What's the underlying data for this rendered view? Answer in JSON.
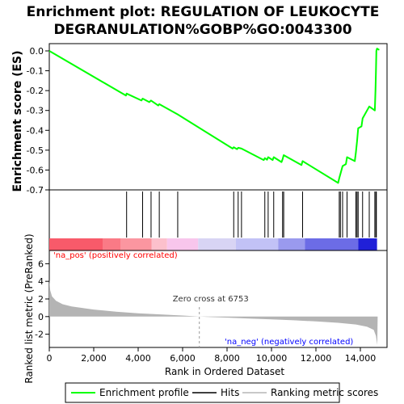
{
  "chart_data": {
    "type": "line",
    "title_line1": "Enrichment plot: REGULATION OF LEUKOCYTE",
    "title_line2": "DEGRANULATION%GOBP%GO:0043300",
    "es_panel": {
      "ylabel": "Enrichment score (ES)",
      "ylim": [
        -0.7,
        0.02
      ],
      "yticks": [
        0.0,
        -0.1,
        -0.2,
        -0.3,
        -0.4,
        -0.5,
        -0.6,
        -0.7
      ],
      "ytick_labels": [
        "0.0",
        "-0.1",
        "-0.2",
        "-0.3",
        "-0.4",
        "-0.5",
        "-0.6",
        "-0.7"
      ],
      "line_color": "#00ff00",
      "series_name": "Enrichment profile",
      "points": [
        [
          0,
          0.0
        ],
        [
          3450,
          -0.225
        ],
        [
          3480,
          -0.215
        ],
        [
          4150,
          -0.25
        ],
        [
          4200,
          -0.24
        ],
        [
          4500,
          -0.258
        ],
        [
          4580,
          -0.25
        ],
        [
          4900,
          -0.275
        ],
        [
          4950,
          -0.268
        ],
        [
          5750,
          -0.318
        ],
        [
          5780,
          -0.32
        ],
        [
          8250,
          -0.492
        ],
        [
          8300,
          -0.485
        ],
        [
          8450,
          -0.495
        ],
        [
          8500,
          -0.488
        ],
        [
          8650,
          -0.492
        ],
        [
          9650,
          -0.55
        ],
        [
          9700,
          -0.54
        ],
        [
          9800,
          -0.548
        ],
        [
          9850,
          -0.535
        ],
        [
          10050,
          -0.55
        ],
        [
          10100,
          -0.535
        ],
        [
          10450,
          -0.56
        ],
        [
          10500,
          -0.545
        ],
        [
          10550,
          -0.525
        ],
        [
          11350,
          -0.575
        ],
        [
          11400,
          -0.555
        ],
        [
          13000,
          -0.665
        ],
        [
          13050,
          -0.64
        ],
        [
          13100,
          -0.62
        ],
        [
          13200,
          -0.58
        ],
        [
          13350,
          -0.57
        ],
        [
          13400,
          -0.535
        ],
        [
          13750,
          -0.555
        ],
        [
          13800,
          -0.51
        ],
        [
          13850,
          -0.455
        ],
        [
          13900,
          -0.39
        ],
        [
          14050,
          -0.38
        ],
        [
          14100,
          -0.34
        ],
        [
          14400,
          -0.28
        ],
        [
          14650,
          -0.3
        ],
        [
          14680,
          -0.2
        ],
        [
          14700,
          -0.1
        ],
        [
          14720,
          0.0
        ],
        [
          14750,
          0.012
        ],
        [
          14850,
          0.005
        ]
      ]
    },
    "hits": {
      "legend_label": "Hits",
      "color": "#000000",
      "positions": [
        3480,
        4200,
        4580,
        4950,
        5780,
        8300,
        8500,
        8650,
        9700,
        9850,
        10100,
        10500,
        10550,
        11400,
        13050,
        13100,
        13200,
        13400,
        13800,
        13850,
        13900,
        14100,
        14400,
        14650,
        14700,
        14720
      ]
    },
    "heatmap_bar": {
      "segments": [
        {
          "from": 0,
          "to": 2400,
          "color": "#f85a6a"
        },
        {
          "from": 2400,
          "to": 3200,
          "color": "#fa7a86"
        },
        {
          "from": 3200,
          "to": 4600,
          "color": "#fb96a0"
        },
        {
          "from": 4600,
          "to": 5300,
          "color": "#fcc0cc"
        },
        {
          "from": 5300,
          "to": 6700,
          "color": "#f8c6ec"
        },
        {
          "from": 6700,
          "to": 8400,
          "color": "#d8d4f4"
        },
        {
          "from": 8400,
          "to": 10300,
          "color": "#c2c2f6"
        },
        {
          "from": 10300,
          "to": 11500,
          "color": "#9a9aee"
        },
        {
          "from": 11500,
          "to": 13900,
          "color": "#6c6ce6"
        },
        {
          "from": 13900,
          "to": 14750,
          "color": "#2020d8"
        }
      ]
    },
    "rank_panel": {
      "ylabel": "Ranked list metric (PreRanked)",
      "xlabel": "Rank in Ordered Dataset",
      "ylim": [
        -3.5,
        7.5
      ],
      "yticks": [
        6,
        4,
        2,
        0,
        -2
      ],
      "ytick_labels": [
        "6",
        "4",
        "2",
        "0",
        "-2"
      ],
      "legend_label": "Ranking metric scores",
      "fill_color": "#b4b4b4",
      "metric_points": [
        [
          0,
          4.2
        ],
        [
          40,
          3.0
        ],
        [
          120,
          2.3
        ],
        [
          300,
          1.8
        ],
        [
          600,
          1.4
        ],
        [
          1000,
          1.15
        ],
        [
          2000,
          0.8
        ],
        [
          3000,
          0.55
        ],
        [
          4000,
          0.38
        ],
        [
          5000,
          0.25
        ],
        [
          6000,
          0.12
        ],
        [
          6753,
          0.0
        ],
        [
          8000,
          -0.12
        ],
        [
          9000,
          -0.22
        ],
        [
          10000,
          -0.32
        ],
        [
          11000,
          -0.42
        ],
        [
          12000,
          -0.55
        ],
        [
          13000,
          -0.7
        ],
        [
          13800,
          -0.9
        ],
        [
          14300,
          -1.15
        ],
        [
          14600,
          -1.5
        ],
        [
          14700,
          -2.2
        ],
        [
          14760,
          -3.2
        ],
        [
          14780,
          0.0
        ]
      ],
      "zero_cross_label": "Zero cross at 6753",
      "zero_cross_rank": 6753,
      "pos_label": "'na_pos' (positively correlated)",
      "neg_label": "'na_neg' (negatively correlated)",
      "pos_color": "#ff0000",
      "neg_color": "#0000ff"
    },
    "xaxis": {
      "xlim": [
        0,
        15200
      ],
      "xticks": [
        0,
        2000,
        4000,
        6000,
        8000,
        10000,
        12000,
        14000
      ],
      "xtick_labels": [
        "0",
        "2,000",
        "4,000",
        "6,000",
        "8,000",
        "10,000",
        "12,000",
        "14,000"
      ]
    }
  }
}
